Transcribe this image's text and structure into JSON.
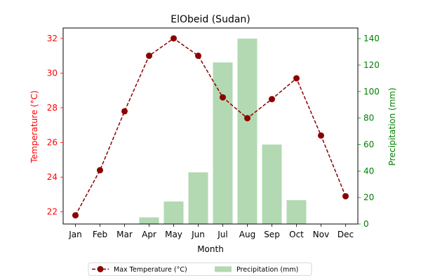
{
  "chart_data": {
    "type": "bar+line",
    "title": "ElObeid (Sudan)",
    "xlabel": "Month",
    "ylabel_left": "Temperature (°C)",
    "ylabel_right": "Precipitation (mm)",
    "categories": [
      "Jan",
      "Feb",
      "Mar",
      "Apr",
      "May",
      "Jun",
      "Jul",
      "Aug",
      "Sep",
      "Oct",
      "Nov",
      "Dec"
    ],
    "ylim_left": [
      21.3,
      32.6
    ],
    "ylim_right": [
      0,
      148
    ],
    "yticks_left": [
      22,
      24,
      26,
      28,
      30,
      32
    ],
    "yticks_right": [
      0,
      20,
      40,
      60,
      80,
      100,
      120,
      140
    ],
    "series": [
      {
        "name": "Max Temperature (°C)",
        "kind": "line",
        "axis": "left",
        "color": "#8b0000",
        "style": "dashed",
        "marker": "circle",
        "values": [
          21.8,
          24.4,
          27.8,
          31.0,
          32.0,
          31.0,
          28.6,
          27.4,
          28.5,
          29.7,
          26.4,
          22.9
        ]
      },
      {
        "name": "Precipitation (mm)",
        "kind": "bar",
        "axis": "right",
        "color": "#b2d9b2",
        "values": [
          0,
          0,
          0,
          5,
          17,
          39,
          122,
          140,
          60,
          18,
          0,
          0
        ]
      }
    ],
    "left_axis_color": "#ff0000",
    "right_axis_color": "#008000",
    "legend_position": "bottom-center"
  }
}
